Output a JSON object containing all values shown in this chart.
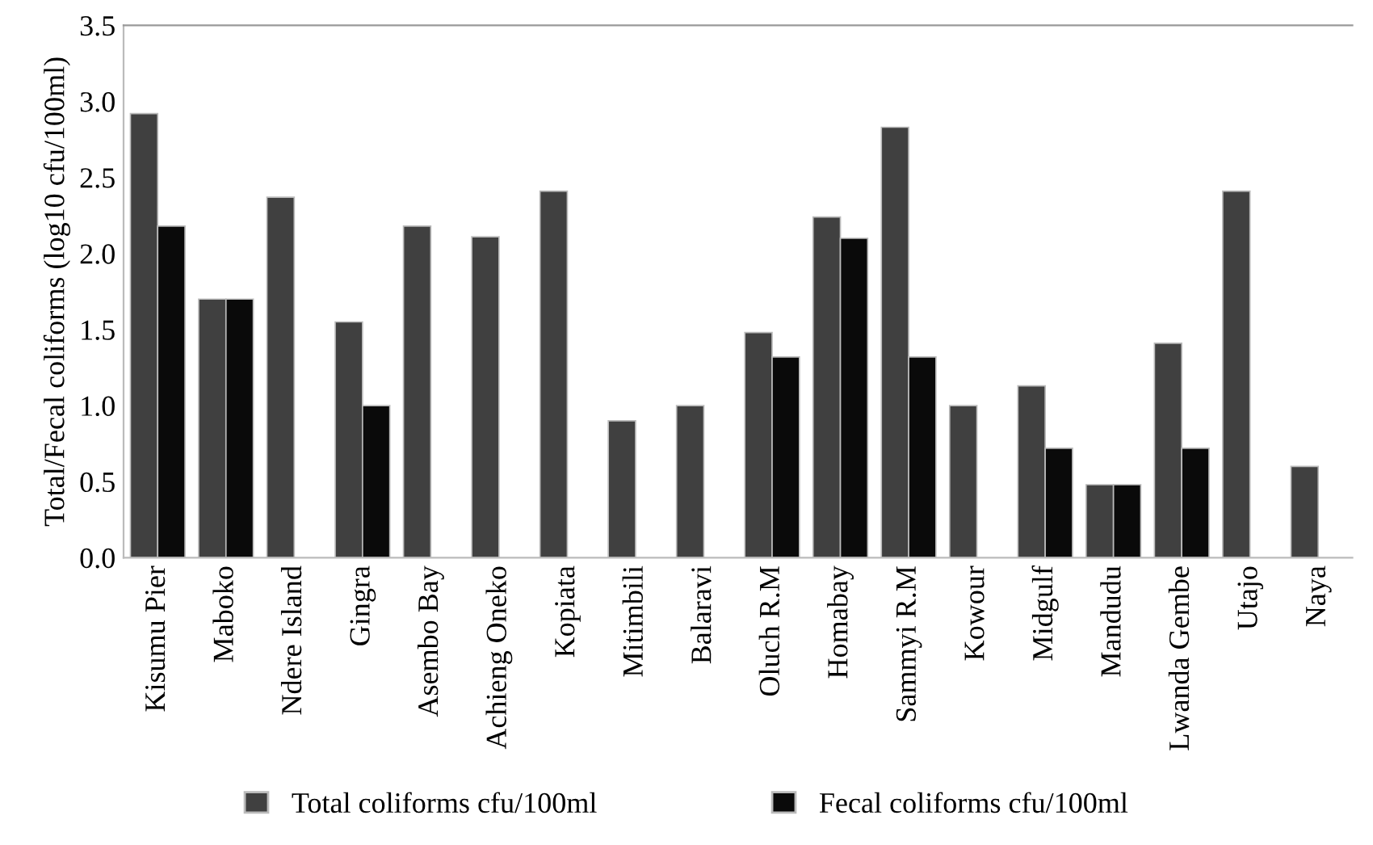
{
  "chart_data": {
    "type": "bar",
    "ylabel": "Total/Fecal coliforms (log10 cfu/100ml)",
    "categories": [
      "Kisumu Pier",
      "Maboko",
      "Ndere Island",
      "Gingra",
      "Asembo Bay",
      "Achieng Oneko",
      "Kopiata",
      "Mitimbili",
      "Balaravi",
      "Oluch R.M",
      "Homabay",
      "Sammyi R.M",
      "Kowour",
      "Midgulf",
      "Mandudu",
      "Lwanda Gembe",
      "Utajo",
      "Naya"
    ],
    "series": [
      {
        "name": "Total coliforms cfu/100ml",
        "color": "#404040",
        "values": [
          2.92,
          1.7,
          2.37,
          1.55,
          2.18,
          2.11,
          2.41,
          0.9,
          1.0,
          1.48,
          2.24,
          2.83,
          1.0,
          1.13,
          0.48,
          1.41,
          2.41,
          0.6
        ]
      },
      {
        "name": "Fecal coliforms cfu/100ml",
        "color": "#0a0a0a",
        "values": [
          2.18,
          1.7,
          null,
          1.0,
          null,
          null,
          null,
          null,
          null,
          1.32,
          2.1,
          1.32,
          null,
          0.72,
          0.48,
          0.72,
          null,
          null
        ]
      }
    ],
    "ylim": [
      0,
      3.5
    ],
    "yticks": [
      {
        "value": 0,
        "label": "0.0"
      },
      {
        "value": 0.5,
        "label": "0.5"
      },
      {
        "value": 1,
        "label": "1.0"
      },
      {
        "value": 1.5,
        "label": "1.5"
      },
      {
        "value": 2,
        "label": "2.0"
      },
      {
        "value": 2.5,
        "label": "2.5"
      },
      {
        "value": 3,
        "label": "3.0"
      },
      {
        "value": 3.5,
        "label": "3.5"
      }
    ],
    "legend": "bottom",
    "grid": false
  }
}
